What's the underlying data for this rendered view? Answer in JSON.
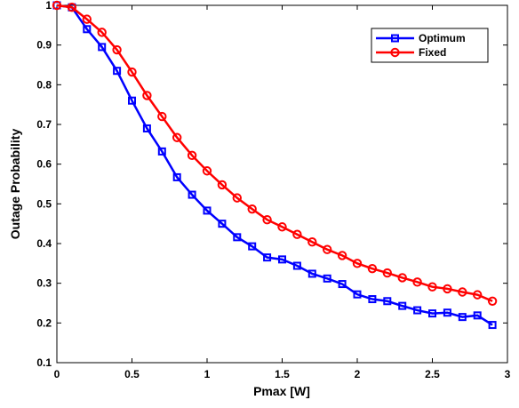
{
  "chart_data": {
    "type": "line",
    "xlabel": "Pmax [W]",
    "ylabel": "Outage Probability",
    "xlim": [
      0,
      3
    ],
    "ylim": [
      0.1,
      1
    ],
    "xticks": [
      0,
      0.5,
      1,
      1.5,
      2,
      2.5,
      3
    ],
    "xtick_labels": [
      "0",
      "0.5",
      "1",
      "1.5",
      "2",
      "2.5",
      "3"
    ],
    "yticks": [
      0.1,
      0.2,
      0.3,
      0.4,
      0.5,
      0.6,
      0.7,
      0.8,
      0.9,
      1
    ],
    "ytick_labels": [
      "0.1",
      "0.2",
      "0.3",
      "0.4",
      "0.5",
      "0.6",
      "0.7",
      "0.8",
      "0.9",
      "1"
    ],
    "grid": false,
    "legend_position": "top-right",
    "x": [
      0,
      0.1,
      0.2,
      0.3,
      0.4,
      0.5,
      0.6,
      0.7,
      0.8,
      0.9,
      1.0,
      1.1,
      1.2,
      1.3,
      1.4,
      1.5,
      1.6,
      1.7,
      1.8,
      1.9,
      2.0,
      2.1,
      2.2,
      2.3,
      2.4,
      2.5,
      2.6,
      2.7,
      2.8,
      2.9
    ],
    "series": [
      {
        "name": "Optimum",
        "color": "#0000ff",
        "marker": "square",
        "values": [
          1.0,
          0.995,
          0.94,
          0.895,
          0.835,
          0.76,
          0.69,
          0.632,
          0.567,
          0.523,
          0.483,
          0.45,
          0.416,
          0.393,
          0.365,
          0.36,
          0.344,
          0.324,
          0.312,
          0.298,
          0.272,
          0.26,
          0.255,
          0.243,
          0.232,
          0.224,
          0.226,
          0.215,
          0.219,
          0.195
        ]
      },
      {
        "name": "Fixed",
        "color": "#ff0000",
        "marker": "circle",
        "values": [
          1.0,
          0.995,
          0.965,
          0.932,
          0.888,
          0.832,
          0.773,
          0.72,
          0.667,
          0.622,
          0.583,
          0.548,
          0.515,
          0.487,
          0.46,
          0.442,
          0.423,
          0.404,
          0.385,
          0.37,
          0.35,
          0.337,
          0.326,
          0.314,
          0.303,
          0.291,
          0.286,
          0.278,
          0.271,
          0.255
        ]
      }
    ]
  }
}
